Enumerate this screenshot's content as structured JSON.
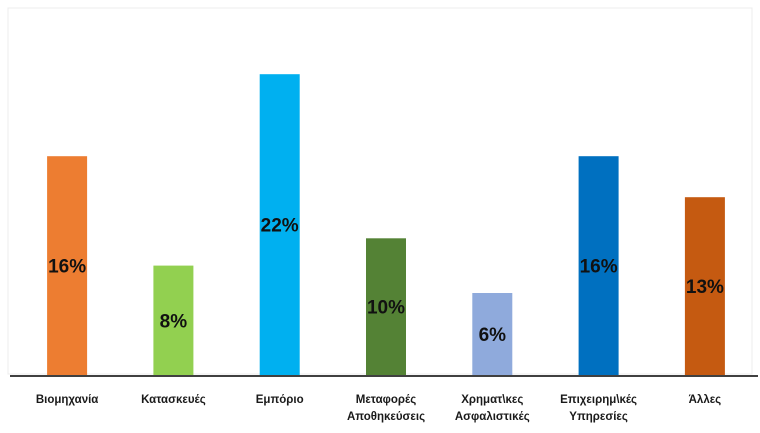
{
  "chart_data": {
    "type": "bar",
    "title": "",
    "xlabel": "",
    "ylabel": "",
    "ylim": [
      0,
      24.5
    ],
    "grid": false,
    "legend": "none",
    "categories": [
      [
        "Βιομηχανία"
      ],
      [
        "Κατασκευές"
      ],
      [
        "Εμπόριο"
      ],
      [
        "Μεταφορές",
        "Αποθηκεύσεις"
      ],
      [
        "Χρηματ\\κες",
        "Ασφαλιστικές"
      ],
      [
        "Επιχειρημ\\κές",
        "Υπηρεσίες"
      ],
      [
        "Άλλες"
      ]
    ],
    "values": [
      16,
      8,
      22,
      10,
      6,
      16,
      13
    ],
    "data_labels": [
      "16%",
      "8%",
      "22%",
      "10%",
      "6%",
      "16%",
      "13%"
    ],
    "colors": [
      "#ed7d31",
      "#92d050",
      "#00b0f0",
      "#548235",
      "#8faadc",
      "#0070c0",
      "#c55a11"
    ]
  }
}
